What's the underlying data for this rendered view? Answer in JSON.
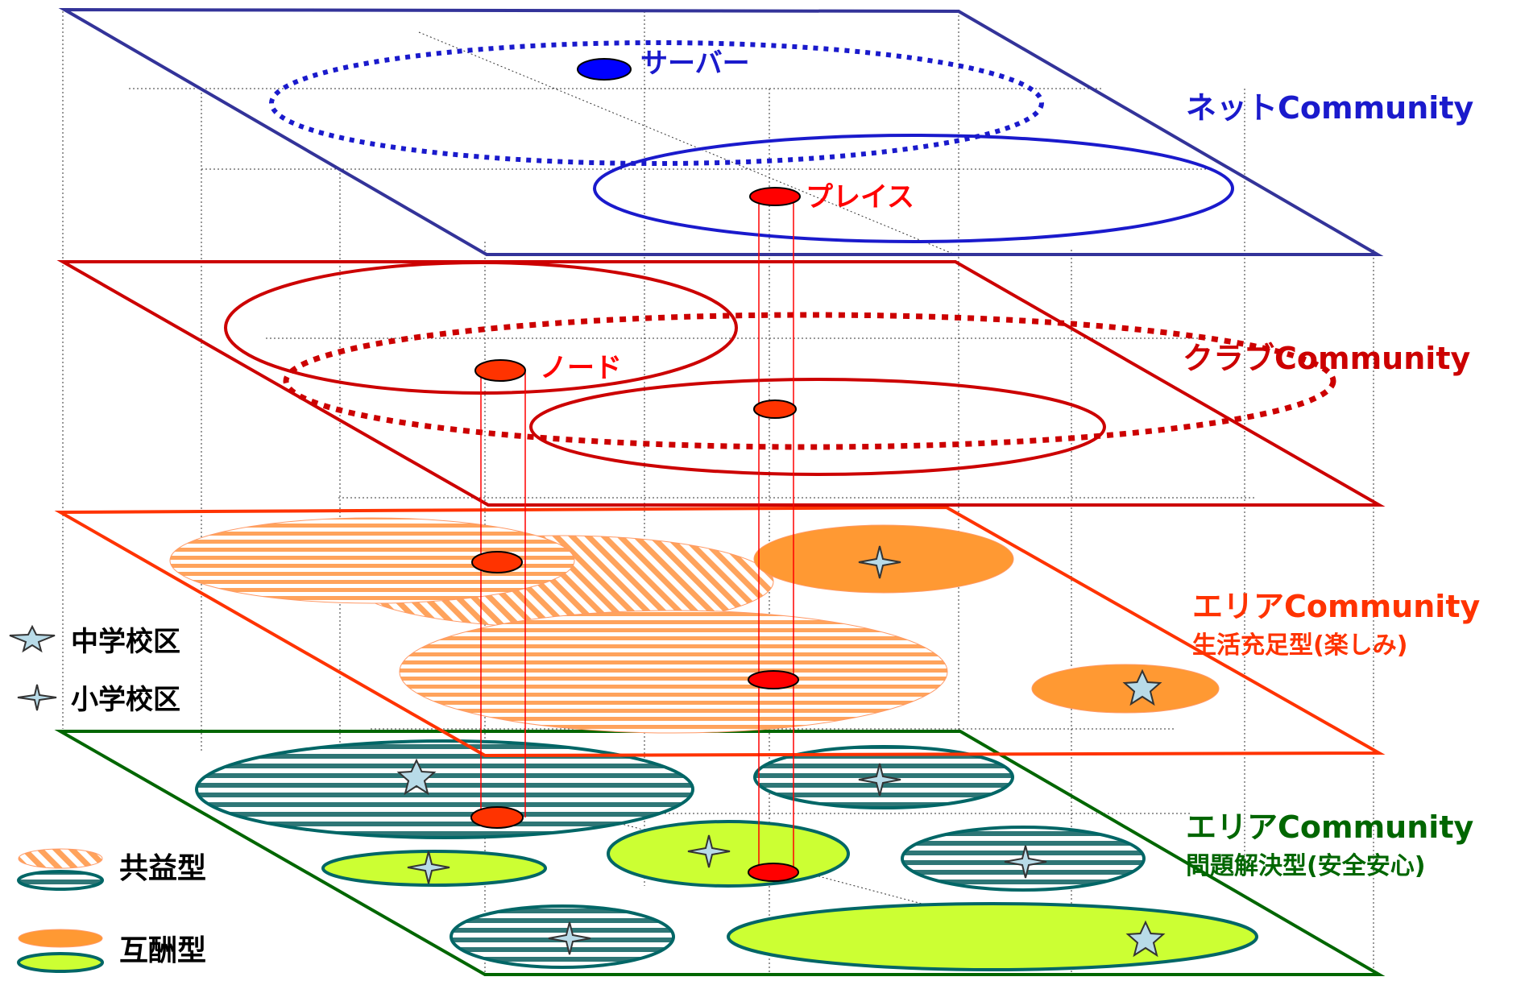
{
  "colors": {
    "net": "#1a1acc",
    "net_frame": "#333399",
    "club": "#cc0000",
    "area": "#ff3300",
    "area_fill": "#ff9933",
    "problem": "#006600",
    "teal": "#006666",
    "lime": "#ccff33",
    "node": "#ff0000",
    "star_fill": "#b8dbe8"
  },
  "layers": {
    "net": {
      "title": "ネットCommunity",
      "server_label": "サーバー",
      "place_label": "プレイス"
    },
    "club": {
      "title": "クラブCommunity",
      "node_label": "ノード"
    },
    "area_fun": {
      "title": "エリアCommunity",
      "subtitle": "生活充足型(楽しみ)"
    },
    "area_problem": {
      "title": "エリアCommunity",
      "subtitle": "問題解決型(安全安心)"
    }
  },
  "legend": {
    "middle_school": "中学校区",
    "elementary_school": "小学校区",
    "mutual_benefit": "共益型",
    "reciprocal": "互酬型"
  },
  "icons": {
    "middle_school": "five-point-star-icon",
    "elementary_school": "four-point-star-icon"
  }
}
